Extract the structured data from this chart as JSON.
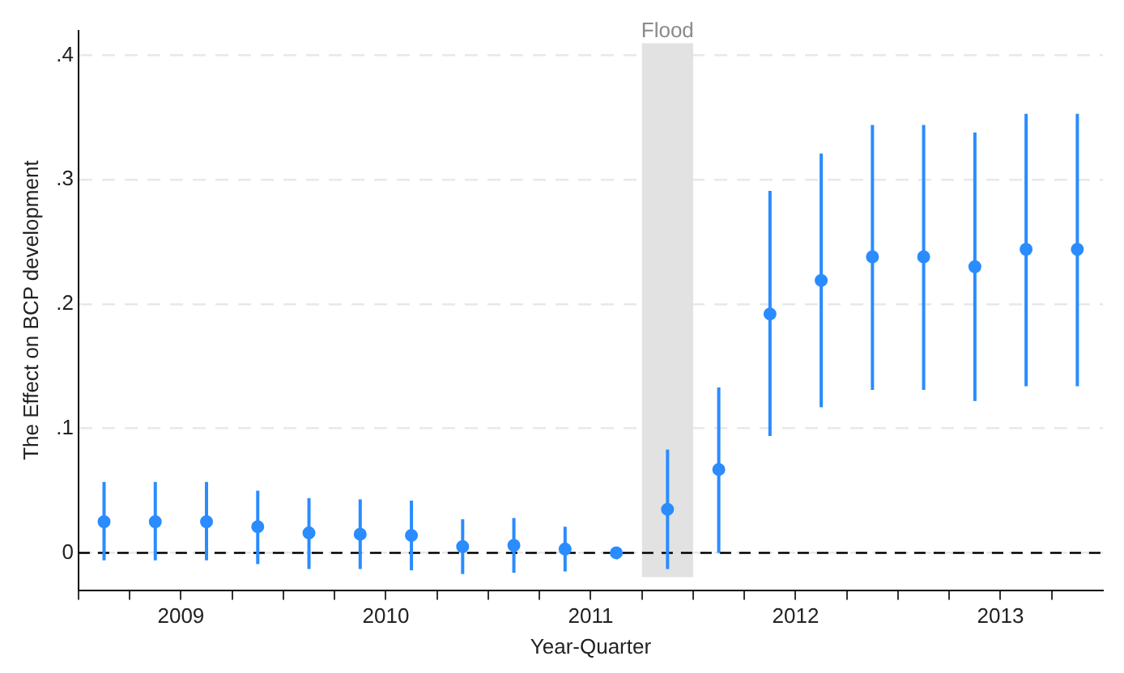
{
  "chart_data": {
    "type": "scatter",
    "xlabel": "Year-Quarter",
    "ylabel": "The Effect on BCP development",
    "x": [
      2009.125,
      2009.375,
      2009.625,
      2009.875,
      2010.125,
      2010.375,
      2010.625,
      2010.875,
      2011.125,
      2011.375,
      2011.625,
      2011.875,
      2012.125,
      2012.375,
      2012.625,
      2012.875,
      2013.125,
      2013.375,
      2013.625,
      2013.875
    ],
    "series": [
      {
        "color": "#2a8cff",
        "values": [
          0.025,
          0.025,
          0.025,
          0.021,
          0.016,
          0.015,
          0.014,
          0.005,
          0.006,
          0.003,
          0,
          0.035,
          0.067,
          0.192,
          0.219,
          0.238,
          0.238,
          0.23,
          0.244,
          0.244
        ],
        "errors": [
          [
            -0.006,
            0.057
          ],
          [
            -0.006,
            0.057
          ],
          [
            -0.006,
            0.057
          ],
          [
            -0.009,
            0.05
          ],
          [
            -0.013,
            0.044
          ],
          [
            -0.013,
            0.043
          ],
          [
            -0.014,
            0.042
          ],
          [
            -0.017,
            0.027
          ],
          [
            -0.016,
            0.028
          ],
          [
            -0.015,
            0.021
          ],
          null,
          [
            -0.013,
            0.083
          ],
          [
            0,
            0.133
          ],
          [
            0.094,
            0.291
          ],
          [
            0.117,
            0.321
          ],
          [
            0.131,
            0.344
          ],
          [
            0.131,
            0.344
          ],
          [
            0.122,
            0.338
          ],
          [
            0.134,
            0.353
          ],
          [
            0.134,
            0.353
          ]
        ]
      }
    ],
    "xlim": [
      2009,
      2014
    ],
    "xticks": [
      {
        "value": 2009,
        "label": null
      },
      {
        "value": 2009.25,
        "label": null
      },
      {
        "value": 2009.5,
        "label": "2009"
      },
      {
        "value": 2009.75,
        "label": null
      },
      {
        "value": 2010,
        "label": null
      },
      {
        "value": 2010.25,
        "label": null
      },
      {
        "value": 2010.5,
        "label": "2010"
      },
      {
        "value": 2010.75,
        "label": null
      },
      {
        "value": 2011,
        "label": null
      },
      {
        "value": 2011.25,
        "label": null
      },
      {
        "value": 2011.5,
        "label": "2011"
      },
      {
        "value": 2011.75,
        "label": null
      },
      {
        "value": 2012,
        "label": null
      },
      {
        "value": 2012.25,
        "label": null
      },
      {
        "value": 2012.5,
        "label": "2012"
      },
      {
        "value": 2012.75,
        "label": null
      },
      {
        "value": 2013,
        "label": null
      },
      {
        "value": 2013.25,
        "label": null
      },
      {
        "value": 2013.5,
        "label": "2013"
      },
      {
        "value": 2013.75,
        "label": null
      }
    ],
    "ylim": [
      -0.03,
      0.42
    ],
    "yticks": [
      0,
      {
        "value": 0.1,
        "label": ".1"
      },
      {
        "value": 0.2,
        "label": ".2"
      },
      {
        "value": 0.3,
        "label": ".3"
      },
      {
        "value": 0.4,
        "label": ".4"
      }
    ],
    "grid": "y",
    "marker": "circle",
    "legend": false,
    "ref_lines": [
      {
        "axis": "y",
        "value": 0,
        "color": "#000000",
        "line_style": "dashed"
      }
    ],
    "bands": [
      {
        "axis": "x",
        "from": 2011.75,
        "to": 2012,
        "label": "Flood",
        "color": "#e2e2e2"
      }
    ]
  }
}
